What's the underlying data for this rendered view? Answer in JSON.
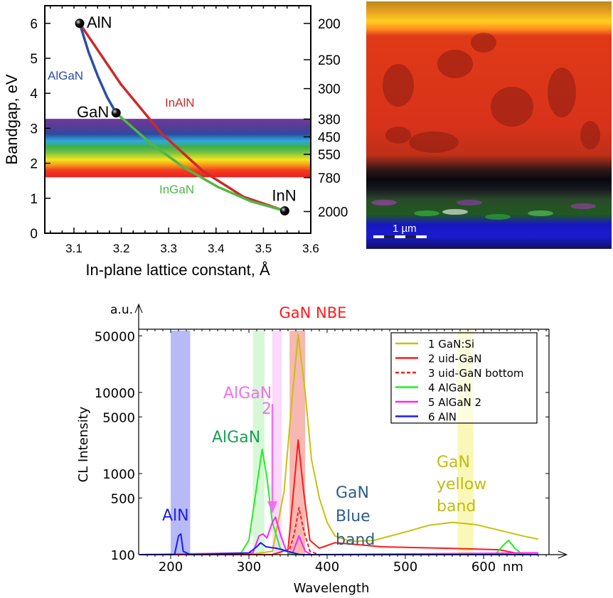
{
  "chart_data": [
    {
      "type": "line",
      "xlabel": "In-plane lattice constant, Å",
      "ylabel": "Bandgap, eV",
      "xlim": [
        3.04,
        3.6
      ],
      "ylim": [
        0,
        6.5
      ],
      "xticks": [
        "3.1",
        "3.2",
        "3.3",
        "3.4",
        "3.5",
        "3.6"
      ],
      "yticks": [
        "0",
        "1",
        "2",
        "3",
        "4",
        "5",
        "6"
      ],
      "right_axis_ticks_nm": [
        "200",
        "250",
        "300",
        "380",
        "450",
        "550",
        "780",
        "2000"
      ],
      "visible_spectrum_band_eV": [
        1.6,
        3.27
      ],
      "points": [
        {
          "label": "AlN",
          "x": 3.112,
          "y": 6.0
        },
        {
          "label": "GaN",
          "x": 3.189,
          "y": 3.44
        },
        {
          "label": "InN",
          "x": 3.545,
          "y": 0.64
        }
      ],
      "series": [
        {
          "name": "AlGaN",
          "color": "#2b4ea8",
          "x": [
            3.112,
            3.131,
            3.151,
            3.17,
            3.189
          ],
          "y": [
            6.0,
            5.17,
            4.47,
            3.89,
            3.44
          ]
        },
        {
          "name": "InAlN",
          "color": "#cc2a2a",
          "x": [
            3.112,
            3.199,
            3.285,
            3.372,
            3.458,
            3.545
          ],
          "y": [
            6.0,
            4.26,
            2.85,
            1.78,
            1.04,
            0.64
          ]
        },
        {
          "name": "InGaN",
          "color": "#4fb845",
          "x": [
            3.189,
            3.26,
            3.331,
            3.403,
            3.474,
            3.545
          ],
          "y": [
            3.44,
            2.59,
            1.89,
            1.33,
            0.91,
            0.64
          ]
        }
      ]
    },
    {
      "type": "line",
      "title": "GaN NBE",
      "xlabel": "Wavelength",
      "ylabel": "CL Intensity",
      "y_unit": "a.u.",
      "x_unit": "nm",
      "yscale": "log",
      "xlim": [
        159,
        684
      ],
      "ylim": [
        100,
        60000
      ],
      "xticks": [
        "200",
        "300",
        "400",
        "500",
        "600"
      ],
      "yticks": [
        "100",
        "500",
        "1000",
        "5000",
        "10000",
        "50000"
      ],
      "legend": "top-right",
      "bands": [
        {
          "range": [
            200,
            225
          ],
          "color": "#9a9cf5"
        },
        {
          "range": [
            305,
            320
          ],
          "color": "#c6f5c6"
        },
        {
          "range": [
            330,
            342
          ],
          "color": "#fbc8fb"
        },
        {
          "range": [
            352,
            372
          ],
          "color": "#f49a90"
        },
        {
          "range": [
            567,
            587
          ],
          "color": "#f6f59a"
        }
      ],
      "annotations": [
        {
          "text": "AlN",
          "color": "#1f1fe0"
        },
        {
          "text": "AlGaN",
          "color": "#18a050"
        },
        {
          "text": "AlGaN 2",
          "color": "#f070f0"
        },
        {
          "text": "GaN Blue band",
          "color": "#2c5f87"
        },
        {
          "text": "GaN yellow band",
          "color": "#c2bb10"
        }
      ],
      "series": [
        {
          "name": "1 GaN:Si",
          "color": "#c8c010",
          "dash": false,
          "x": [
            160,
            300,
            330,
            345,
            355,
            363,
            372,
            380,
            390,
            400,
            410,
            430,
            460,
            500,
            530,
            560,
            590,
            620,
            650,
            670
          ],
          "y": [
            100,
            100,
            110,
            600,
            8000,
            52000,
            10000,
            1500,
            500,
            250,
            170,
            145,
            150,
            190,
            230,
            250,
            235,
            200,
            170,
            155
          ]
        },
        {
          "name": "2 uid-GaN",
          "color": "#ff1a1a",
          "dash": false,
          "x": [
            160,
            330,
            350,
            357,
            363,
            370,
            378,
            390,
            410,
            430,
            470,
            550,
            620,
            640,
            670
          ],
          "y": [
            100,
            100,
            115,
            600,
            2600,
            600,
            150,
            120,
            140,
            135,
            125,
            120,
            115,
            105,
            105
          ]
        },
        {
          "name": "3 uid-GaN bottom",
          "color": "#ff1a1a",
          "dash": true,
          "x": [
            350,
            358,
            364,
            370,
            378,
            390
          ],
          "y": [
            100,
            180,
            380,
            200,
            110,
            100
          ]
        },
        {
          "name": "4 AlGaN",
          "color": "#22ee22",
          "dash": false,
          "x": [
            160,
            290,
            300,
            310,
            317,
            323,
            330,
            340,
            355,
            615,
            625,
            632,
            640,
            650,
            670
          ],
          "y": [
            100,
            105,
            150,
            700,
            2000,
            900,
            250,
            120,
            100,
            100,
            130,
            150,
            120,
            100,
            100
          ]
        },
        {
          "name": "5 AlGaN 2",
          "color": "#ff22ff",
          "dash": false,
          "x": [
            160,
            305,
            313,
            318,
            323,
            330,
            334,
            340,
            348,
            356,
            364,
            372,
            380,
            670
          ],
          "y": [
            100,
            105,
            170,
            180,
            160,
            250,
            290,
            180,
            110,
            105,
            170,
            110,
            100,
            105
          ]
        },
        {
          "name": "6 AlN",
          "color": "#1a1aff",
          "dash": false,
          "x": [
            160,
            205,
            210,
            213,
            216,
            225,
            300,
            310,
            315,
            322,
            335,
            350,
            365,
            670
          ],
          "y": [
            100,
            100,
            170,
            180,
            110,
            100,
            105,
            125,
            140,
            125,
            120,
            110,
            100,
            100
          ]
        }
      ]
    }
  ],
  "micrograph": {
    "scale_bar_label": "1 µm"
  }
}
